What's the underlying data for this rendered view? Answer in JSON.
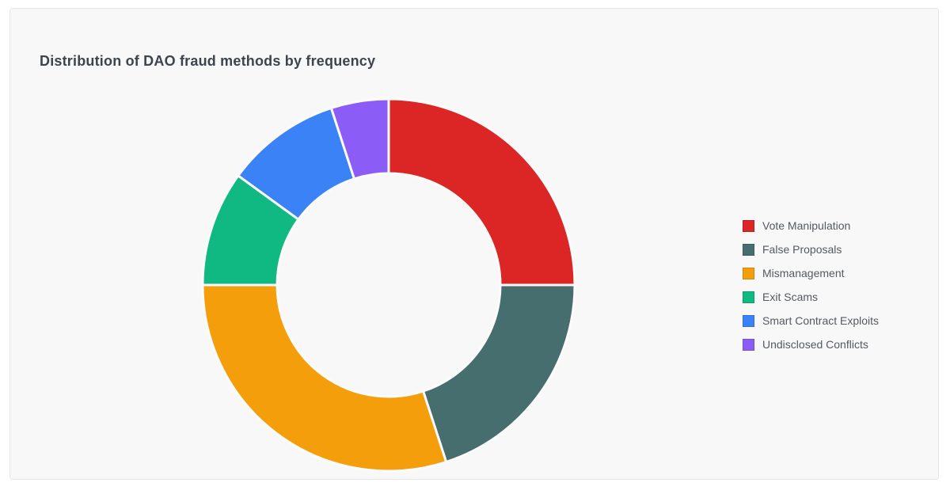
{
  "page": {
    "background": "#ffffff"
  },
  "card": {
    "background": "#f8f8f9",
    "border_color": "#e5e6e8"
  },
  "chart_data": {
    "type": "pie",
    "subtype": "donut",
    "title": "Distribution of DAO fraud methods by frequency",
    "legend_position": "right",
    "start_angle": "top",
    "direction": "clockwise",
    "hole_ratio": 0.6,
    "separator_color": "#fbfbfc",
    "series": [
      {
        "label": "Vote Manipulation",
        "value": 25,
        "color": "#dc2626"
      },
      {
        "label": "False Proposals",
        "value": 20,
        "color": "#476e6e"
      },
      {
        "label": "Mismanagement",
        "value": 30,
        "color": "#f59e0b"
      },
      {
        "label": "Exit Scams",
        "value": 10,
        "color": "#10b981"
      },
      {
        "label": "Smart Contract Exploits",
        "value": 10,
        "color": "#3b82f6"
      },
      {
        "label": "Undisclosed Conflicts",
        "value": 5,
        "color": "#8b5cf6"
      }
    ]
  }
}
